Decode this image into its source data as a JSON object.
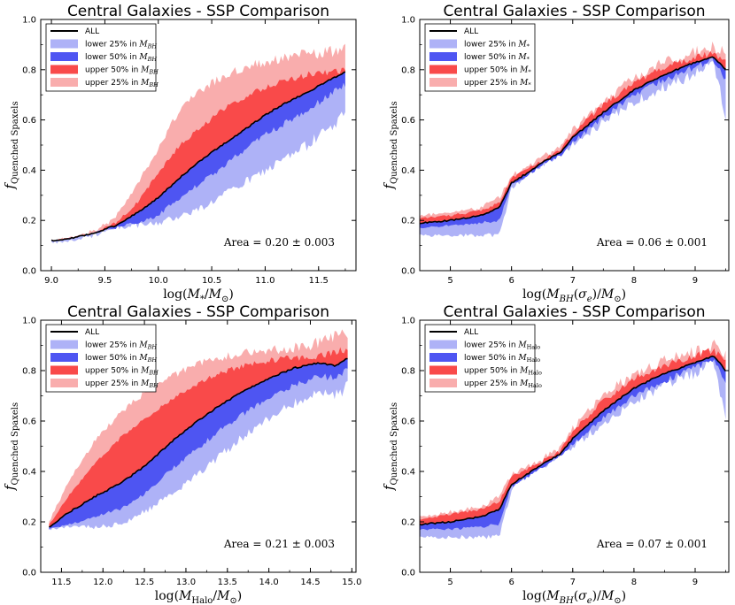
{
  "figure": {
    "ylabel_main": "f",
    "ylabel_sub": "Quenched Spaxels",
    "legend_all": "ALL",
    "colors": {
      "lower25": "#aeb2f7",
      "lower50": "#4e55f2",
      "upper50": "#f94a4a",
      "upper25": "#f9adad",
      "all": "#000000"
    }
  },
  "chart_data": [
    {
      "type": "area",
      "title": "Central Galaxies - SSP Comparison",
      "xlabel": "log(M_*/M_⊙)",
      "ylabel": "f_Quenched Spaxels",
      "xlim": [
        8.9,
        11.85
      ],
      "ylim": [
        0.0,
        1.0
      ],
      "xticks": [
        "9.0",
        "9.5",
        "10.0",
        "10.5",
        "11.0",
        "11.5"
      ],
      "xtick_values": [
        9.0,
        9.5,
        10.0,
        10.5,
        11.0,
        11.5
      ],
      "yticks": [
        "0.0",
        "0.2",
        "0.4",
        "0.6",
        "0.8",
        "1.0"
      ],
      "legend_labels": [
        "ALL",
        "lower 25%  in M_BH",
        "lower 50%  in M_BH",
        "upper 50%  in M_BH",
        "upper 25%  in M_BH"
      ],
      "legend_var": "M_BH",
      "area_text": "Area = 0.20 ± 0.003",
      "x": [
        9.0,
        9.2,
        9.4,
        9.6,
        9.8,
        10.0,
        10.2,
        10.4,
        10.6,
        10.8,
        11.0,
        11.2,
        11.4,
        11.6,
        11.75
      ],
      "series": [
        {
          "name": "ALL",
          "values": [
            0.12,
            0.13,
            0.15,
            0.18,
            0.23,
            0.29,
            0.37,
            0.44,
            0.5,
            0.56,
            0.62,
            0.67,
            0.71,
            0.76,
            0.79
          ]
        },
        {
          "name": "lower 25% low",
          "values": [
            0.11,
            0.12,
            0.14,
            0.17,
            0.18,
            0.19,
            0.22,
            0.25,
            0.3,
            0.35,
            0.4,
            0.45,
            0.5,
            0.57,
            0.62
          ]
        },
        {
          "name": "lower 50% low",
          "values": [
            0.12,
            0.13,
            0.15,
            0.17,
            0.19,
            0.22,
            0.29,
            0.35,
            0.41,
            0.48,
            0.54,
            0.59,
            0.64,
            0.7,
            0.74
          ]
        },
        {
          "name": "upper 50% high",
          "values": [
            0.12,
            0.13,
            0.15,
            0.19,
            0.27,
            0.39,
            0.5,
            0.57,
            0.64,
            0.69,
            0.73,
            0.76,
            0.78,
            0.79,
            0.8
          ]
        },
        {
          "name": "upper 25% high",
          "values": [
            0.12,
            0.13,
            0.16,
            0.21,
            0.34,
            0.49,
            0.64,
            0.72,
            0.77,
            0.81,
            0.83,
            0.85,
            0.86,
            0.87,
            0.88
          ]
        }
      ]
    },
    {
      "type": "area",
      "title": "Central Galaxies - SSP Comparison",
      "xlabel": "log(M_BH(σ_e)/M_⊙)",
      "ylabel": "f_Quenched Spaxels",
      "xlim": [
        4.5,
        9.55
      ],
      "ylim": [
        0.0,
        1.0
      ],
      "xticks": [
        "5",
        "6",
        "7",
        "8",
        "9"
      ],
      "xtick_values": [
        5,
        6,
        7,
        8,
        9
      ],
      "yticks": [
        "0.0",
        "0.2",
        "0.4",
        "0.6",
        "0.8",
        "1.0"
      ],
      "legend_labels": [
        "ALL",
        "lower 25%  in M_*",
        "lower 50%  in M_*",
        "upper 50%  in M_*",
        "upper 25%  in M_*"
      ],
      "legend_var": "M_*",
      "area_text": "Area = 0.06 ± 0.001",
      "x": [
        4.5,
        5.0,
        5.5,
        5.8,
        6.0,
        6.2,
        6.5,
        6.8,
        7.0,
        7.5,
        8.0,
        8.5,
        9.0,
        9.3,
        9.5
      ],
      "series": [
        {
          "name": "ALL",
          "values": [
            0.19,
            0.2,
            0.22,
            0.25,
            0.35,
            0.38,
            0.43,
            0.47,
            0.53,
            0.63,
            0.72,
            0.78,
            0.83,
            0.85,
            0.8
          ]
        },
        {
          "name": "lower 25% low",
          "values": [
            0.14,
            0.14,
            0.14,
            0.14,
            0.33,
            0.37,
            0.42,
            0.46,
            0.5,
            0.59,
            0.67,
            0.73,
            0.78,
            0.83,
            0.61
          ]
        },
        {
          "name": "lower 50% low",
          "values": [
            0.17,
            0.18,
            0.19,
            0.2,
            0.34,
            0.37,
            0.42,
            0.46,
            0.51,
            0.61,
            0.7,
            0.76,
            0.81,
            0.84,
            0.75
          ]
        },
        {
          "name": "upper 50% high",
          "values": [
            0.21,
            0.22,
            0.24,
            0.27,
            0.37,
            0.4,
            0.44,
            0.48,
            0.55,
            0.66,
            0.75,
            0.81,
            0.85,
            0.87,
            0.83
          ]
        },
        {
          "name": "upper 25% high",
          "values": [
            0.22,
            0.23,
            0.25,
            0.29,
            0.38,
            0.4,
            0.45,
            0.49,
            0.56,
            0.67,
            0.77,
            0.83,
            0.87,
            0.89,
            0.86
          ]
        }
      ]
    },
    {
      "type": "area",
      "title": "Central Galaxies - SSP Comparison",
      "xlabel": "log(M_Halo/M_⊙)",
      "ylabel": "f_Quenched Spaxels",
      "xlim": [
        11.25,
        15.05
      ],
      "ylim": [
        0.0,
        1.0
      ],
      "xticks": [
        "11.5",
        "12.0",
        "12.5",
        "13.0",
        "13.5",
        "14.0",
        "14.5",
        "15.0"
      ],
      "xtick_values": [
        11.5,
        12.0,
        12.5,
        13.0,
        13.5,
        14.0,
        14.5,
        15.0
      ],
      "yticks": [
        "0.0",
        "0.2",
        "0.4",
        "0.6",
        "0.8",
        "1.0"
      ],
      "legend_labels": [
        "ALL",
        "lower 25%  in M_BH",
        "lower 50%  in M_BH",
        "upper 50%  in M_BH",
        "upper 25%  in M_BH"
      ],
      "legend_var": "M_BH",
      "area_text": "Area = 0.21 ± 0.003",
      "x": [
        11.35,
        11.6,
        11.9,
        12.2,
        12.5,
        12.8,
        13.1,
        13.4,
        13.7,
        14.0,
        14.3,
        14.6,
        14.8,
        14.95
      ],
      "series": [
        {
          "name": "ALL",
          "values": [
            0.18,
            0.24,
            0.3,
            0.35,
            0.42,
            0.51,
            0.59,
            0.66,
            0.72,
            0.77,
            0.81,
            0.83,
            0.82,
            0.85
          ]
        },
        {
          "name": "lower 25% low",
          "values": [
            0.17,
            0.18,
            0.18,
            0.19,
            0.24,
            0.3,
            0.38,
            0.46,
            0.54,
            0.61,
            0.67,
            0.72,
            0.7,
            0.74
          ]
        },
        {
          "name": "lower 50% low",
          "values": [
            0.17,
            0.19,
            0.22,
            0.25,
            0.31,
            0.4,
            0.48,
            0.56,
            0.63,
            0.69,
            0.74,
            0.78,
            0.77,
            0.8
          ]
        },
        {
          "name": "upper 50% high",
          "values": [
            0.19,
            0.31,
            0.43,
            0.53,
            0.61,
            0.68,
            0.74,
            0.79,
            0.82,
            0.84,
            0.85,
            0.86,
            0.87,
            0.89
          ]
        },
        {
          "name": "upper 25% high",
          "values": [
            0.2,
            0.37,
            0.52,
            0.63,
            0.71,
            0.77,
            0.82,
            0.85,
            0.87,
            0.88,
            0.89,
            0.91,
            0.94,
            0.95
          ]
        }
      ]
    },
    {
      "type": "area",
      "title": "Central Galaxies - SSP Comparison",
      "xlabel": "log(M_BH(σ_e)/M_⊙)",
      "ylabel": "f_Quenched Spaxels",
      "xlim": [
        4.5,
        9.55
      ],
      "ylim": [
        0.0,
        1.0
      ],
      "xticks": [
        "5",
        "6",
        "7",
        "8",
        "9"
      ],
      "xtick_values": [
        5,
        6,
        7,
        8,
        9
      ],
      "yticks": [
        "0.0",
        "0.2",
        "0.4",
        "0.6",
        "0.8",
        "1.0"
      ],
      "legend_labels": [
        "ALL",
        "lower 25% in M_Halo",
        "lower 50% in M_Halo",
        "upper 50% in M_Halo",
        "upper 25% in M_Halo"
      ],
      "legend_var": "M_Halo",
      "area_text": "Area = 0.07 ± 0.001",
      "x": [
        4.5,
        5.0,
        5.5,
        5.8,
        6.0,
        6.2,
        6.5,
        6.8,
        7.0,
        7.5,
        8.0,
        8.5,
        9.0,
        9.3,
        9.5
      ],
      "series": [
        {
          "name": "ALL",
          "values": [
            0.19,
            0.2,
            0.22,
            0.25,
            0.35,
            0.38,
            0.43,
            0.47,
            0.53,
            0.64,
            0.73,
            0.79,
            0.83,
            0.86,
            0.8
          ]
        },
        {
          "name": "lower 25% low",
          "values": [
            0.14,
            0.14,
            0.14,
            0.14,
            0.33,
            0.37,
            0.42,
            0.46,
            0.5,
            0.59,
            0.68,
            0.74,
            0.79,
            0.84,
            0.61
          ]
        },
        {
          "name": "lower 50% low",
          "values": [
            0.17,
            0.17,
            0.18,
            0.19,
            0.34,
            0.37,
            0.42,
            0.46,
            0.51,
            0.61,
            0.7,
            0.76,
            0.81,
            0.85,
            0.75
          ]
        },
        {
          "name": "upper 50% high",
          "values": [
            0.21,
            0.23,
            0.25,
            0.28,
            0.38,
            0.4,
            0.44,
            0.48,
            0.56,
            0.68,
            0.77,
            0.82,
            0.86,
            0.88,
            0.84
          ]
        },
        {
          "name": "upper 25% high",
          "values": [
            0.22,
            0.24,
            0.26,
            0.3,
            0.39,
            0.41,
            0.45,
            0.49,
            0.57,
            0.7,
            0.79,
            0.84,
            0.88,
            0.9,
            0.87
          ]
        }
      ]
    }
  ]
}
